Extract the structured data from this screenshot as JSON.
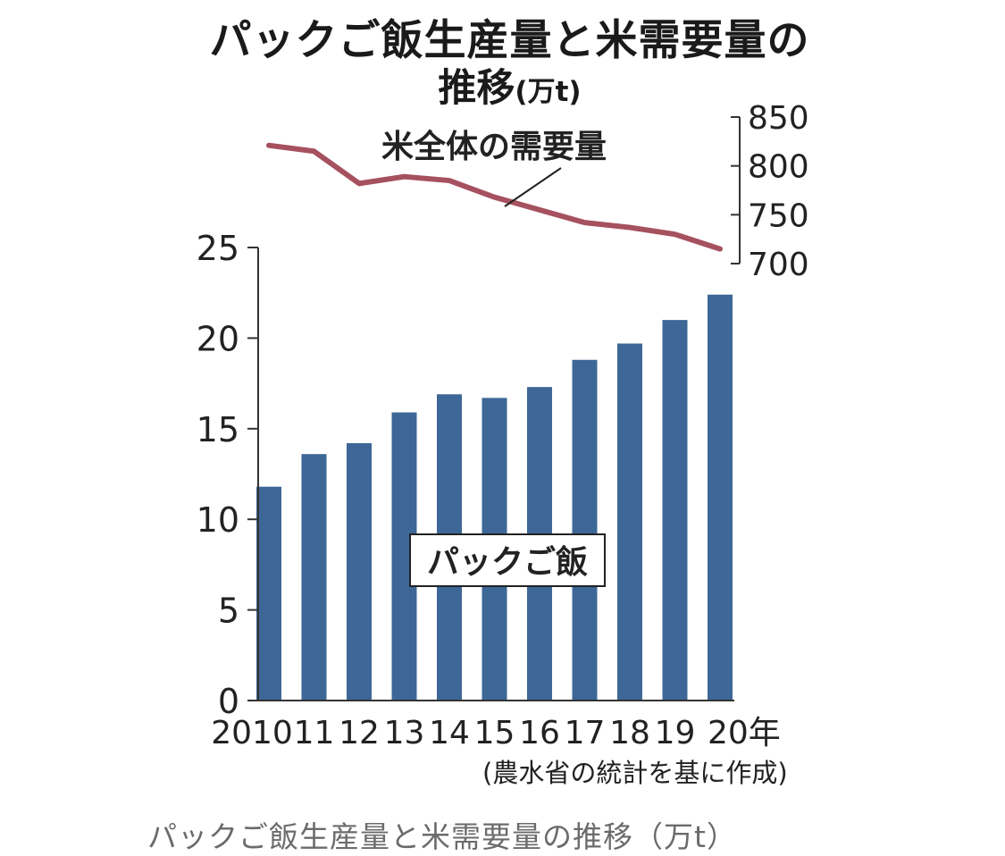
{
  "title": "パックご飯生産量と米需要量の",
  "title_line2": "推移",
  "title_unit": "(万t)",
  "source": "(農水省の統計を基に作成)",
  "caption": "パックご飯生産量と米需要量の推移（万t）",
  "colors": {
    "bar": "#3d6796",
    "line": "#a6515f",
    "axis": "#333333",
    "text": "#222222"
  },
  "chart_data": {
    "type": "bar+line",
    "categories": [
      "2010",
      "11",
      "12",
      "13",
      "14",
      "15",
      "16",
      "17",
      "18",
      "19",
      "20年"
    ],
    "series": [
      {
        "name": "パックご飯",
        "type": "bar",
        "axis": "left",
        "values": [
          11.8,
          13.6,
          14.2,
          15.9,
          16.9,
          16.7,
          17.3,
          18.8,
          19.7,
          21.0,
          22.4
        ]
      },
      {
        "name": "米全体の需要量",
        "type": "line",
        "axis": "right",
        "values": [
          821,
          815,
          782,
          789,
          785,
          768,
          755,
          742,
          737,
          730,
          715
        ]
      }
    ],
    "left_axis": {
      "ylim": [
        0,
        25
      ],
      "ticks": [
        "0",
        "5",
        "10",
        "15",
        "20",
        "25"
      ]
    },
    "right_axis": {
      "ylim": [
        700,
        850
      ],
      "ticks": [
        "700",
        "750",
        "800",
        "850"
      ]
    },
    "grid": false
  }
}
